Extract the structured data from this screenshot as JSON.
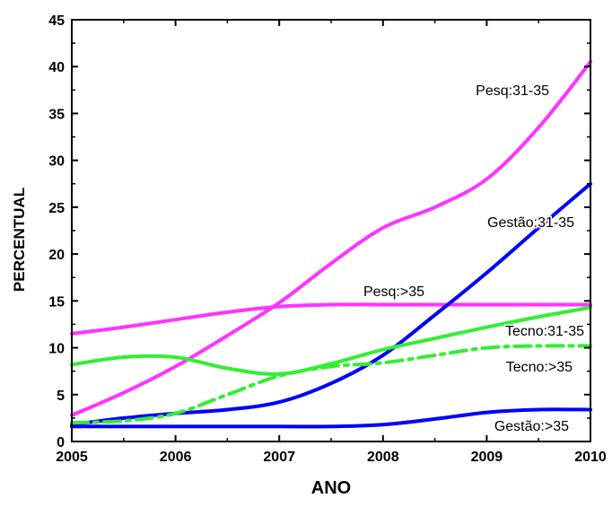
{
  "chart_data": {
    "type": "line",
    "title": "",
    "xlabel": "ANO",
    "ylabel": "PERCENTUAL",
    "xlim": [
      2005,
      2010
    ],
    "ylim": [
      0,
      45
    ],
    "xticks": [
      2005,
      2006,
      2007,
      2008,
      2009,
      2010
    ],
    "yticks": [
      0,
      5,
      10,
      15,
      20,
      25,
      30,
      35,
      40,
      45
    ],
    "grid": false,
    "legend": "none (inline labels next to curves)",
    "series": [
      {
        "name": "Pesq:31-35",
        "color": "#ff33ff",
        "dash": "solid",
        "x": [
          2005,
          2005.5,
          2006,
          2006.5,
          2007,
          2007.5,
          2008,
          2008.5,
          2009,
          2009.5,
          2010
        ],
        "y": [
          2.8,
          5.2,
          8.0,
          11.3,
          14.8,
          19.0,
          22.8,
          25.0,
          28.0,
          33.5,
          40.5
        ]
      },
      {
        "name": "Pesq:>35",
        "color": "#ff33ff",
        "dash": "solid",
        "x": [
          2005,
          2005.5,
          2006,
          2006.5,
          2007,
          2007.5,
          2008,
          2008.5,
          2009,
          2009.5,
          2010
        ],
        "y": [
          11.5,
          12.2,
          13.0,
          13.8,
          14.4,
          14.6,
          14.6,
          14.6,
          14.6,
          14.6,
          14.6
        ]
      },
      {
        "name": "Gestão:31-35",
        "color": "#0000ff",
        "dash": "solid",
        "x": [
          2005,
          2005.5,
          2006,
          2006.5,
          2007,
          2007.5,
          2008,
          2008.5,
          2009,
          2009.5,
          2010
        ],
        "y": [
          1.8,
          2.5,
          3.0,
          3.4,
          4.2,
          6.2,
          9.2,
          13.5,
          18.0,
          22.8,
          27.5
        ]
      },
      {
        "name": "Gestão:>35",
        "color": "#0000ff",
        "dash": "solid",
        "x": [
          2005,
          2005.5,
          2006,
          2006.5,
          2007,
          2007.5,
          2008,
          2008.5,
          2009,
          2009.5,
          2010
        ],
        "y": [
          1.6,
          1.6,
          1.6,
          1.6,
          1.6,
          1.6,
          1.8,
          2.4,
          3.1,
          3.4,
          3.4
        ]
      },
      {
        "name": "Tecno:31-35",
        "color": "#33ee33",
        "dash": "solid",
        "x": [
          2005,
          2005.5,
          2006,
          2006.5,
          2007,
          2007.5,
          2008,
          2008.5,
          2009,
          2009.5,
          2010
        ],
        "y": [
          8.2,
          9.0,
          9.0,
          7.8,
          7.2,
          8.3,
          9.8,
          11.0,
          12.2,
          13.3,
          14.3
        ]
      },
      {
        "name": "Tecno:>35",
        "color": "#33ee33",
        "dash": "dashdot",
        "x": [
          2005,
          2005.5,
          2006,
          2006.5,
          2007,
          2007.5,
          2008,
          2008.5,
          2009,
          2009.5,
          2010
        ],
        "y": [
          2.0,
          2.2,
          3.0,
          5.0,
          7.0,
          8.0,
          8.4,
          9.2,
          10.0,
          10.2,
          10.2
        ]
      }
    ]
  }
}
